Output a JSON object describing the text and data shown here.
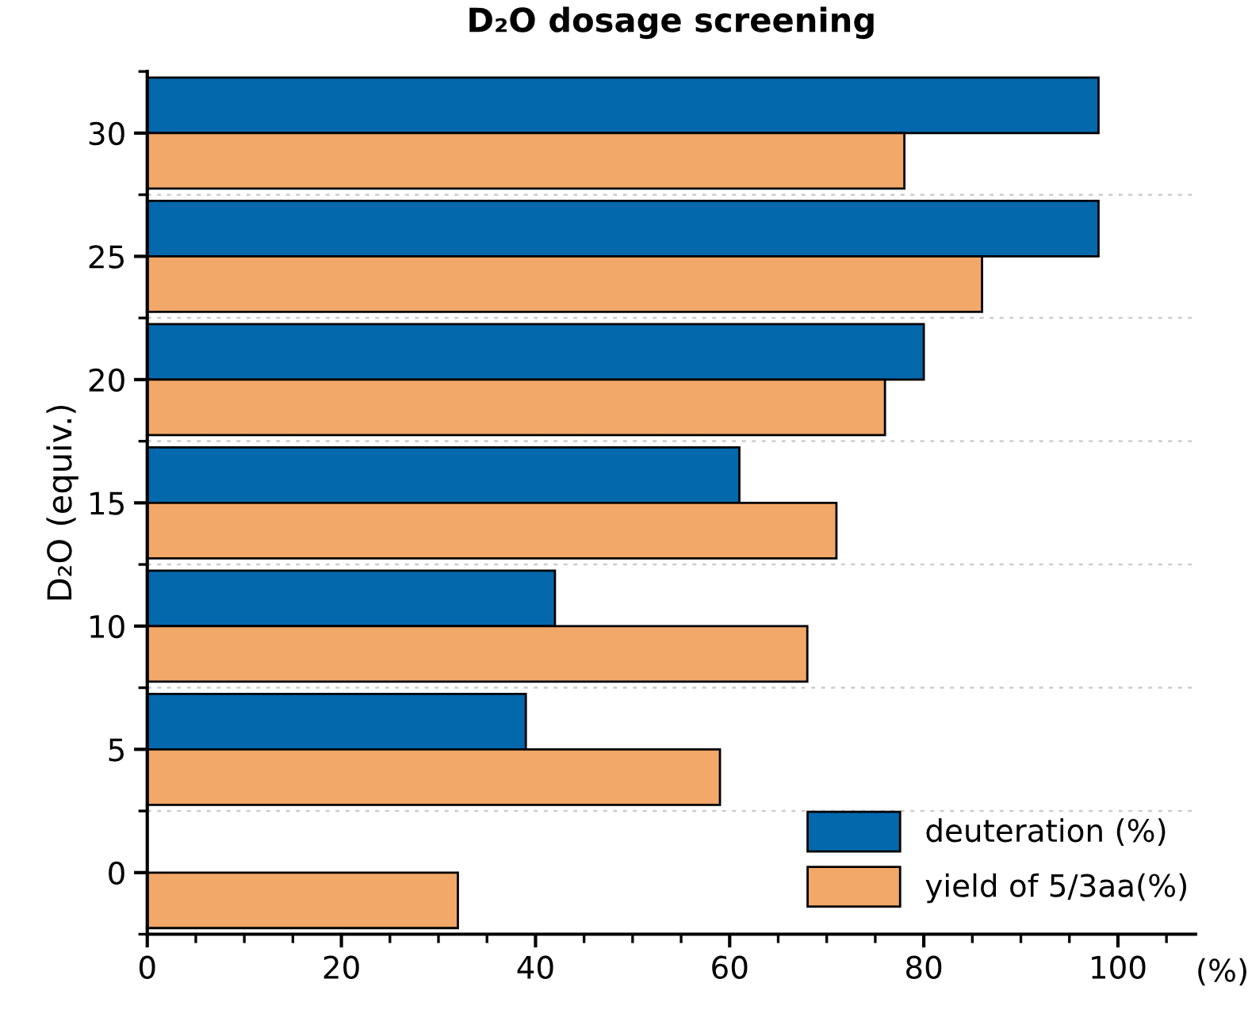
{
  "chart_data": {
    "type": "bar",
    "orientation": "horizontal",
    "title": "D₂O dosage screening",
    "ylabel": "D₂O (equiv.)",
    "xlabel": "(%)",
    "categories": [
      "30",
      "25",
      "20",
      "15",
      "10",
      "5",
      "0"
    ],
    "series": [
      {
        "name": "deuteration (%)",
        "color": "#0468ac",
        "values": [
          98,
          98,
          80,
          61,
          42,
          39,
          null
        ]
      },
      {
        "name": "yield of 5/3aa(%)",
        "color": "#f2a868",
        "values": [
          78,
          86,
          76,
          71,
          68,
          59,
          32
        ]
      }
    ],
    "xlim": [
      0,
      108
    ],
    "xticks": [
      0,
      20,
      40,
      60,
      80,
      100
    ],
    "grid": "y",
    "legend": "bottom right"
  }
}
